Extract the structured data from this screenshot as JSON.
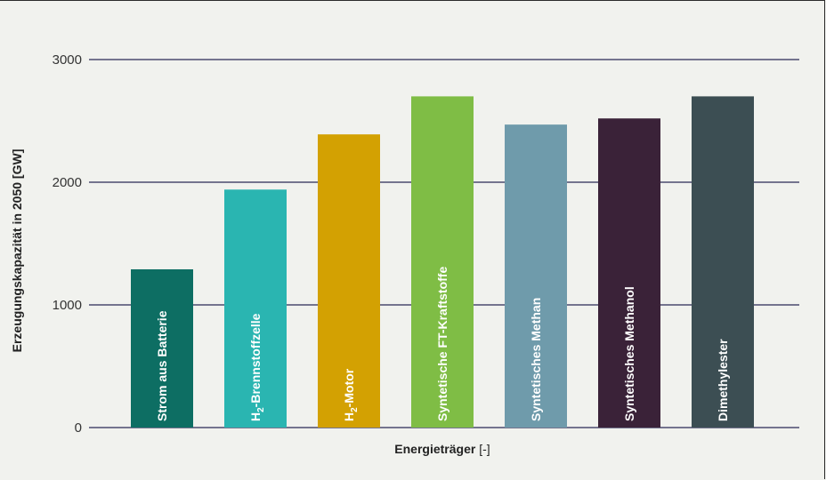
{
  "chart_data": {
    "type": "bar",
    "title": "",
    "xlabel": "Energieträger",
    "xlabel_unit": "[-]",
    "ylabel": "Erzeugungskapazität in 2050 [GW]",
    "ylim": [
      0,
      3000
    ],
    "yticks": [
      0,
      1000,
      2000,
      3000
    ],
    "grid": true,
    "categories": [
      {
        "label": "Strom aus Batterie",
        "sub": ""
      },
      {
        "label": "H",
        "sub": "2",
        "rest": "-Brennstoffzelle"
      },
      {
        "label": "H",
        "sub": "2",
        "rest": "-Motor"
      },
      {
        "label": "Syntetische FT-Kraftstoffe",
        "sub": ""
      },
      {
        "label": "Syntetisches Methan",
        "sub": ""
      },
      {
        "label": "Syntetisches Methanol",
        "sub": ""
      },
      {
        "label": "Dimethylester",
        "sub": ""
      }
    ],
    "values": [
      1290,
      1940,
      2390,
      2700,
      2470,
      2520,
      2700
    ],
    "colors": [
      "#0d6e63",
      "#2ab5b1",
      "#d3a102",
      "#7fbd45",
      "#6f9bab",
      "#3a2238",
      "#3c4e53"
    ]
  }
}
